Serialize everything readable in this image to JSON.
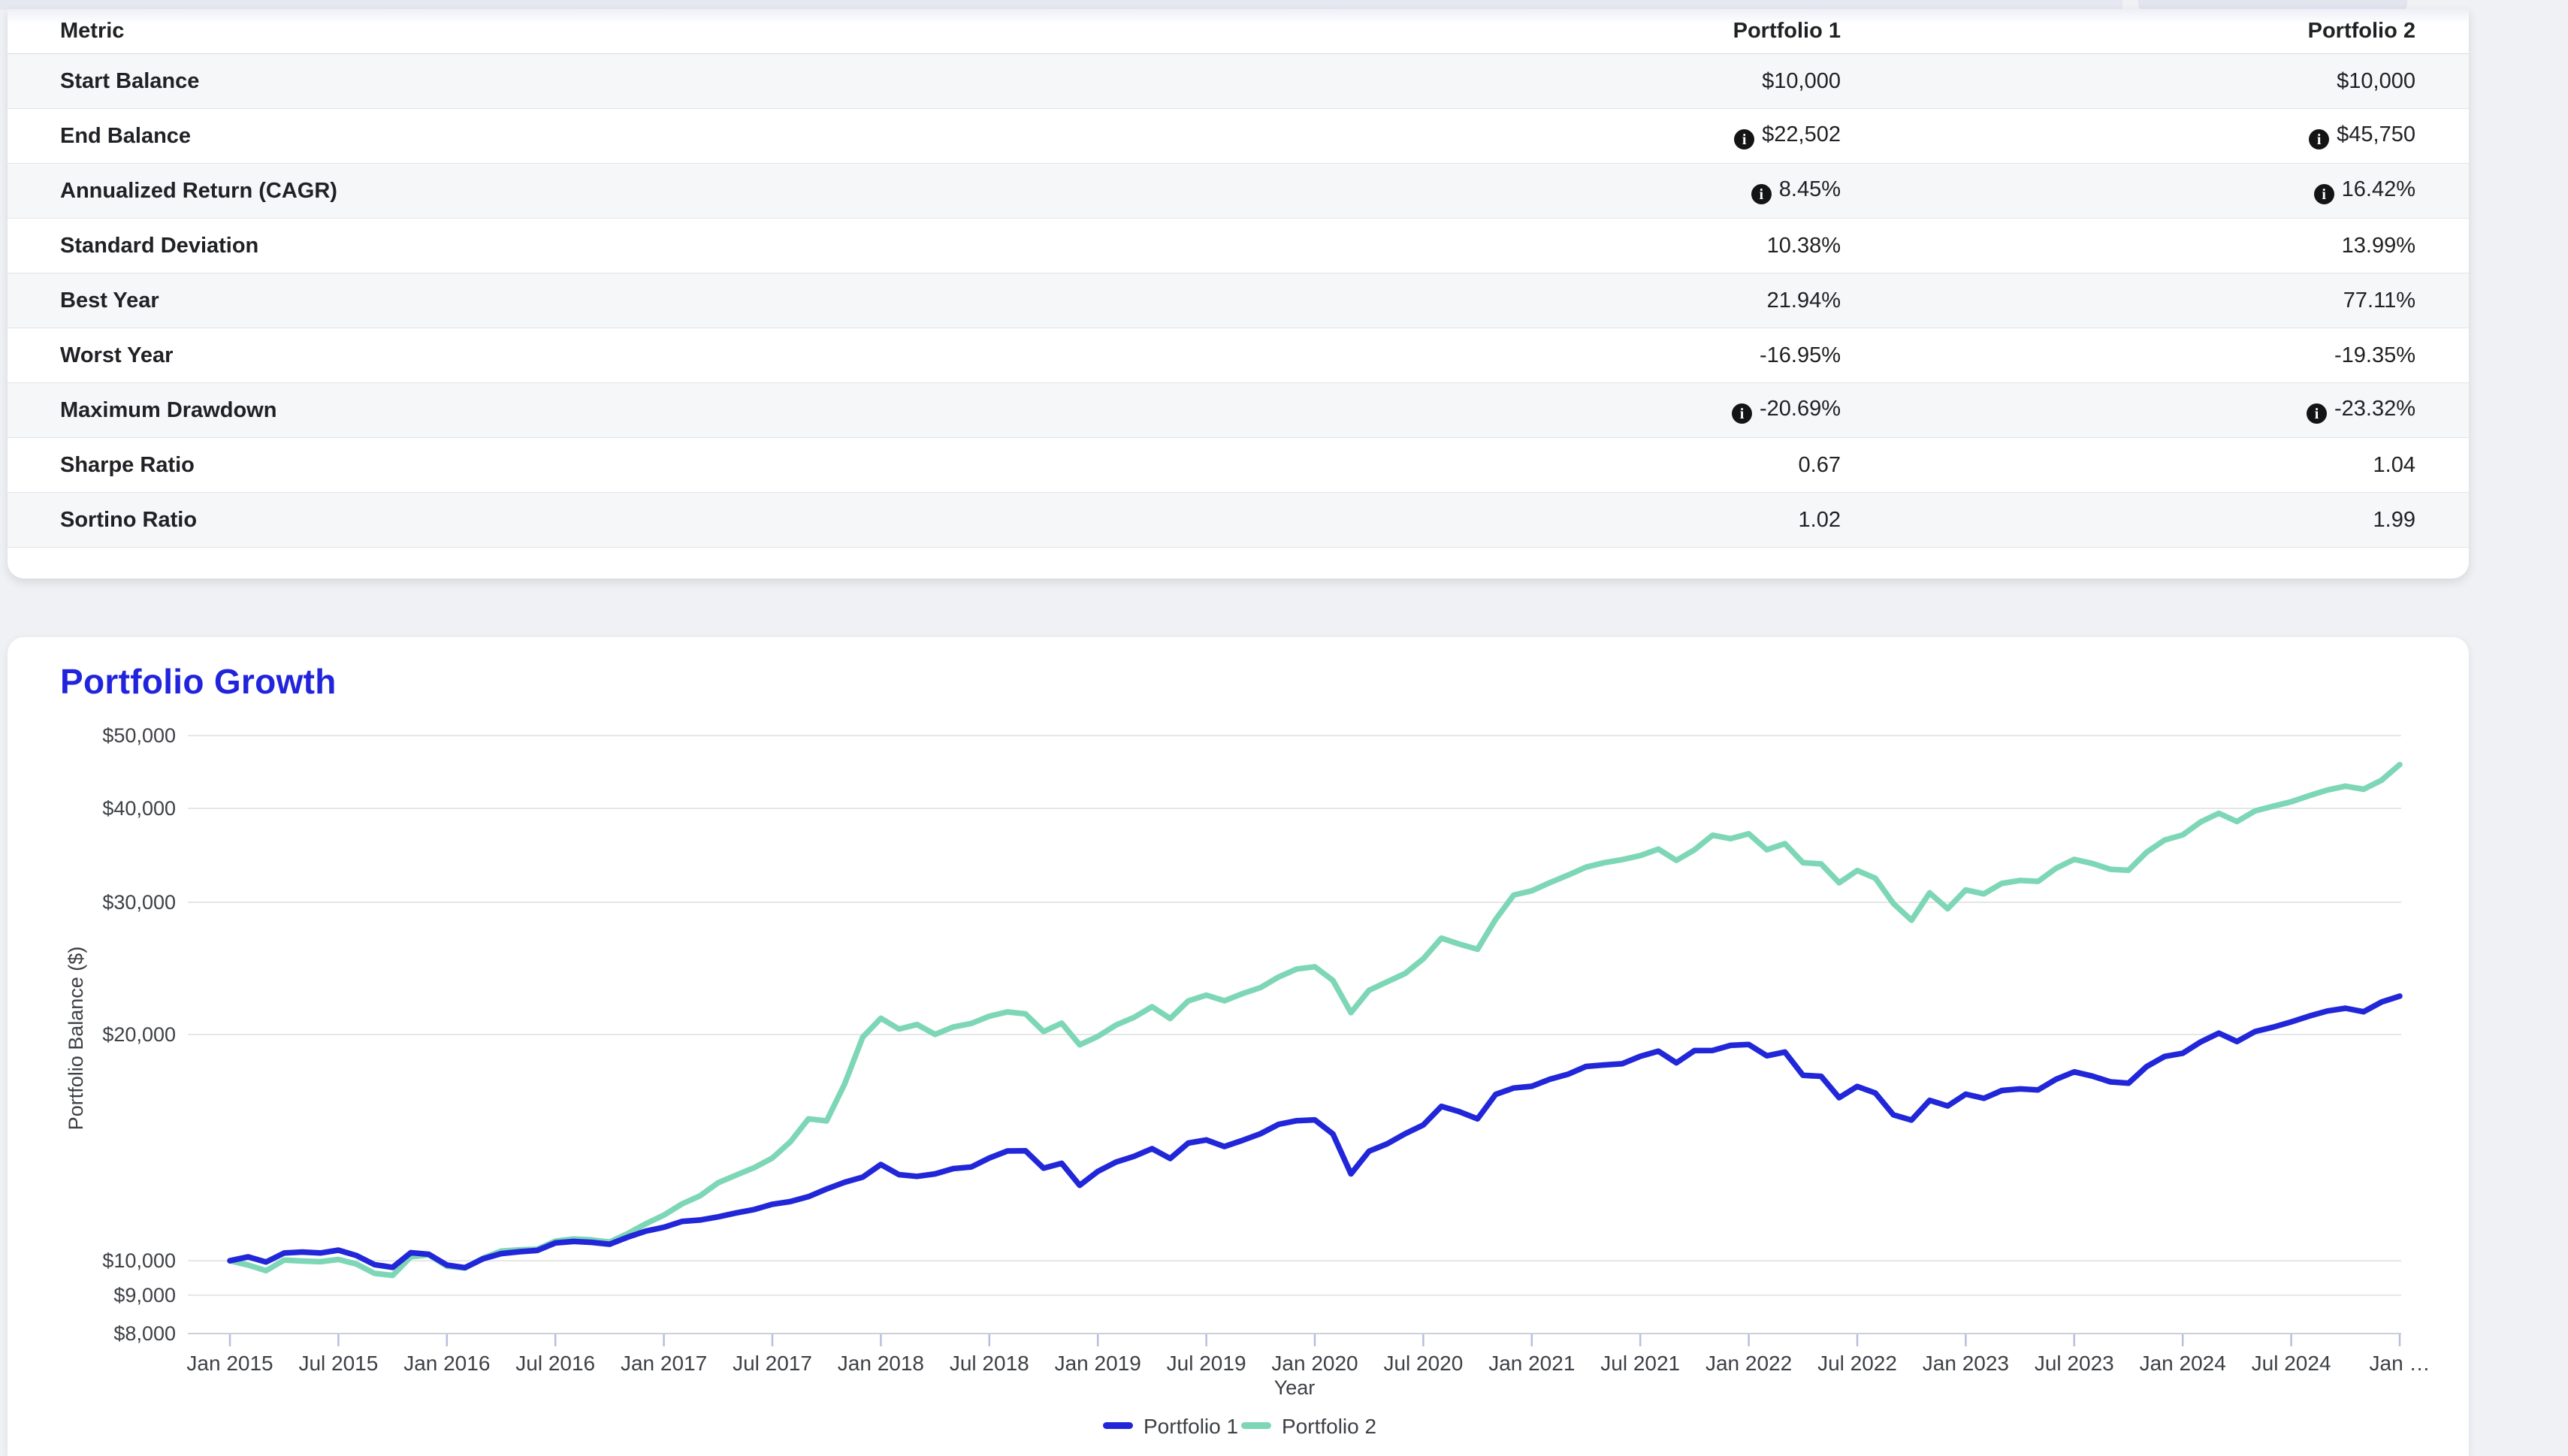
{
  "artifacts": {
    "scroll_thumb": "horizontal-scrollbar-thumb"
  },
  "metrics_table": {
    "columns": [
      "Metric",
      "Portfolio 1",
      "Portfolio 2"
    ],
    "rows": [
      {
        "metric": "Start Balance",
        "portfolio1": "$10,000",
        "portfolio2": "$10,000",
        "info1": false,
        "info2": false
      },
      {
        "metric": "End Balance",
        "portfolio1": "$22,502",
        "portfolio2": "$45,750",
        "info1": true,
        "info2": true
      },
      {
        "metric": "Annualized Return (CAGR)",
        "portfolio1": "8.45%",
        "portfolio2": "16.42%",
        "info1": true,
        "info2": true
      },
      {
        "metric": "Standard Deviation",
        "portfolio1": "10.38%",
        "portfolio2": "13.99%",
        "info1": false,
        "info2": false
      },
      {
        "metric": "Best Year",
        "portfolio1": "21.94%",
        "portfolio2": "77.11%",
        "info1": false,
        "info2": false
      },
      {
        "metric": "Worst Year",
        "portfolio1": "-16.95%",
        "portfolio2": "-19.35%",
        "info1": false,
        "info2": false
      },
      {
        "metric": "Maximum Drawdown",
        "portfolio1": "-20.69%",
        "portfolio2": "-23.32%",
        "info1": true,
        "info2": true
      },
      {
        "metric": "Sharpe Ratio",
        "portfolio1": "0.67",
        "portfolio2": "1.04",
        "info1": false,
        "info2": false
      },
      {
        "metric": "Sortino Ratio",
        "portfolio1": "1.02",
        "portfolio2": "1.99",
        "info1": false,
        "info2": false
      }
    ],
    "info_icon": "i"
  },
  "growth": {
    "title": "Portfolio Growth"
  },
  "chart_data": {
    "type": "line",
    "title": "Portfolio Growth",
    "xlabel": "Year",
    "ylabel": "Portfolio Balance ($)",
    "y_scale": "log",
    "ylim": [
      8000,
      50000
    ],
    "grid": "horizontal",
    "legend_position": "bottom",
    "x_start": "Jan 2015",
    "x_end": "Jan 2025",
    "frequency": "monthly",
    "yticks": [
      {
        "label": "$50,000",
        "value": 50000
      },
      {
        "label": "$40,000",
        "value": 40000
      },
      {
        "label": "$30,000",
        "value": 30000
      },
      {
        "label": "$20,000",
        "value": 20000
      },
      {
        "label": "$10,000",
        "value": 10000
      },
      {
        "label": "$9,000",
        "value": 9000
      },
      {
        "label": "$8,000",
        "value": 8000
      }
    ],
    "xticks": [
      "Jan 2015",
      "Jul 2015",
      "Jan 2016",
      "Jul 2016",
      "Jan 2017",
      "Jul 2017",
      "Jan 2018",
      "Jul 2018",
      "Jan 2019",
      "Jul 2019",
      "Jan 2020",
      "Jul 2020",
      "Jan 2021",
      "Jul 2021",
      "Jan 2022",
      "Jul 2022",
      "Jan 2023",
      "Jul 2023",
      "Jan 2024",
      "Jul 2024",
      "Jan …"
    ],
    "series": [
      {
        "name": "Portfolio 1",
        "color": "#2127d8",
        "values": [
          10000,
          10120,
          9960,
          10240,
          10270,
          10240,
          10330,
          10160,
          9880,
          9800,
          10250,
          10200,
          9870,
          9790,
          10060,
          10220,
          10280,
          10320,
          10560,
          10610,
          10580,
          10520,
          10750,
          10950,
          11080,
          11280,
          11330,
          11440,
          11580,
          11700,
          11890,
          11990,
          12170,
          12460,
          12720,
          12920,
          13430,
          13020,
          12950,
          13050,
          13260,
          13330,
          13700,
          14000,
          14010,
          13280,
          13480,
          12600,
          13150,
          13530,
          13770,
          14100,
          13680,
          14340,
          14480,
          14190,
          14460,
          14760,
          15190,
          15360,
          15400,
          14750,
          13050,
          13990,
          14310,
          14760,
          15160,
          16050,
          15790,
          15450,
          16650,
          16980,
          17070,
          17440,
          17710,
          18140,
          18220,
          18290,
          18710,
          19010,
          18340,
          19040,
          19050,
          19350,
          19400,
          18740,
          18960,
          17650,
          17600,
          16480,
          17060,
          16720,
          15640,
          15390,
          16350,
          16070,
          16660,
          16450,
          16850,
          16930,
          16880,
          17440,
          17840,
          17610,
          17300,
          17230,
          18130,
          18700,
          18890,
          19560,
          20090,
          19580,
          20190,
          20460,
          20790,
          21170,
          21500,
          21680,
          21450,
          22100,
          22502
        ]
      },
      {
        "name": "Portfolio 2",
        "color": "#7dd7b6",
        "values": [
          10000,
          9870,
          9700,
          10020,
          9990,
          9970,
          10040,
          9900,
          9620,
          9560,
          10120,
          10180,
          9830,
          9780,
          10080,
          10300,
          10340,
          10360,
          10620,
          10690,
          10660,
          10590,
          10870,
          11200,
          11500,
          11900,
          12200,
          12700,
          13000,
          13300,
          13700,
          14400,
          15450,
          15350,
          17200,
          19840,
          21030,
          20340,
          20630,
          20010,
          20470,
          20690,
          21160,
          21440,
          21310,
          20190,
          20710,
          19380,
          19890,
          20590,
          21080,
          21780,
          21010,
          22170,
          22570,
          22180,
          22670,
          23100,
          23860,
          24450,
          24620,
          23610,
          21390,
          22910,
          23510,
          24120,
          25230,
          26880,
          26390,
          25980,
          28470,
          30670,
          31070,
          31860,
          32600,
          33410,
          33870,
          34190,
          34620,
          35310,
          34110,
          35240,
          36850,
          36460,
          37010,
          35240,
          35910,
          33870,
          33740,
          31850,
          33070,
          32300,
          29890,
          28390,
          30880,
          29410,
          31160,
          30780,
          31790,
          32080,
          31990,
          33300,
          34210,
          33790,
          33190,
          33090,
          34970,
          36310,
          36880,
          38390,
          39410,
          38420,
          39690,
          40270,
          40820,
          41590,
          42310,
          42820,
          42420,
          43610,
          45750
        ]
      }
    ]
  }
}
